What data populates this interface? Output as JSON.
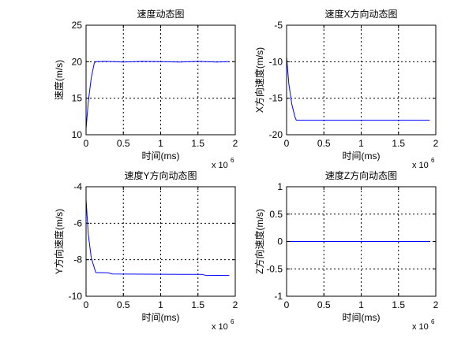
{
  "figure": {
    "background": "#ffffff",
    "axes_color": "#000000",
    "grid_color": "#000000",
    "line_color": "#0000ff"
  },
  "chart_data": [
    {
      "type": "line",
      "title": "速度动态图",
      "xlabel": "时间(ms)",
      "ylabel": "速度(m/s)",
      "x_multiplier": "x 10",
      "x_multiplier_exp": "6",
      "xlim": [
        0,
        2
      ],
      "ylim": [
        10,
        25
      ],
      "xticks": [
        0,
        0.5,
        1,
        1.5,
        2
      ],
      "xtick_labels": [
        "0",
        "0.5",
        "1",
        "1.5",
        "2"
      ],
      "yticks": [
        10,
        15,
        20,
        25
      ],
      "ytick_labels": [
        "10",
        "15",
        "20",
        "25"
      ],
      "grid": true,
      "series": [
        {
          "color": "#0000ff",
          "x": [
            0,
            0.03,
            0.07,
            0.11,
            0.13,
            0.25,
            0.5,
            0.75,
            1.0,
            1.25,
            1.5,
            1.75,
            1.92
          ],
          "y": [
            10.8,
            14.5,
            17.8,
            19.8,
            20.0,
            20.05,
            19.95,
            20.05,
            20.0,
            19.95,
            20.05,
            19.95,
            20.0
          ]
        }
      ]
    },
    {
      "type": "line",
      "title": "速度X方向动态图",
      "xlabel": "时间(ms)",
      "ylabel": "X方向速度(m/s)",
      "x_multiplier": "x 10",
      "x_multiplier_exp": "6",
      "xlim": [
        0,
        2
      ],
      "ylim": [
        -20,
        -5
      ],
      "xticks": [
        0,
        0.5,
        1,
        1.5,
        2
      ],
      "xtick_labels": [
        "0",
        "0.5",
        "1",
        "1.5",
        "2"
      ],
      "yticks": [
        -20,
        -15,
        -10,
        -5
      ],
      "ytick_labels": [
        "-20",
        "-15",
        "-10",
        "-5"
      ],
      "grid": true,
      "series": [
        {
          "color": "#0000ff",
          "x": [
            0,
            0.03,
            0.07,
            0.11,
            0.13,
            0.5,
            1.0,
            1.5,
            1.92
          ],
          "y": [
            -9.3,
            -13.0,
            -15.8,
            -17.5,
            -18.0,
            -18.0,
            -18.0,
            -18.0,
            -18.0
          ]
        }
      ]
    },
    {
      "type": "line",
      "title": "速度Y方向动态图",
      "xlabel": "时间(ms)",
      "ylabel": "Y方向速度(m/s)",
      "x_multiplier": "x 10",
      "x_multiplier_exp": "6",
      "xlim": [
        0,
        2
      ],
      "ylim": [
        -10,
        -4
      ],
      "xticks": [
        0,
        0.5,
        1,
        1.5,
        2
      ],
      "xtick_labels": [
        "0",
        "0.5",
        "1",
        "1.5",
        "2"
      ],
      "yticks": [
        -10,
        -8,
        -6,
        -4
      ],
      "ytick_labels": [
        "-10",
        "-8",
        "-6",
        "-4"
      ],
      "grid": true,
      "series": [
        {
          "color": "#0000ff",
          "x": [
            0,
            0.03,
            0.07,
            0.13,
            0.3,
            0.35,
            0.8,
            1.3,
            1.55,
            1.6,
            1.92
          ],
          "y": [
            -4.7,
            -6.6,
            -7.9,
            -8.7,
            -8.72,
            -8.78,
            -8.79,
            -8.8,
            -8.8,
            -8.85,
            -8.86
          ]
        }
      ]
    },
    {
      "type": "line",
      "title": "速度Z方向动态图",
      "xlabel": "时间(ms)",
      "ylabel": "Z方向速度(m/s)",
      "x_multiplier": "x 10",
      "x_multiplier_exp": "6",
      "xlim": [
        0,
        2
      ],
      "ylim": [
        -1,
        1
      ],
      "xticks": [
        0,
        0.5,
        1,
        1.5,
        2
      ],
      "xtick_labels": [
        "0",
        "0.5",
        "1",
        "1.5",
        "2"
      ],
      "yticks": [
        -1,
        -0.5,
        0,
        0.5,
        1
      ],
      "ytick_labels": [
        "-1",
        "-0.5",
        "0",
        "0.5",
        "1"
      ],
      "grid": true,
      "series": [
        {
          "color": "#0000ff",
          "x": [
            0,
            1.92
          ],
          "y": [
            0,
            0
          ]
        }
      ]
    }
  ]
}
